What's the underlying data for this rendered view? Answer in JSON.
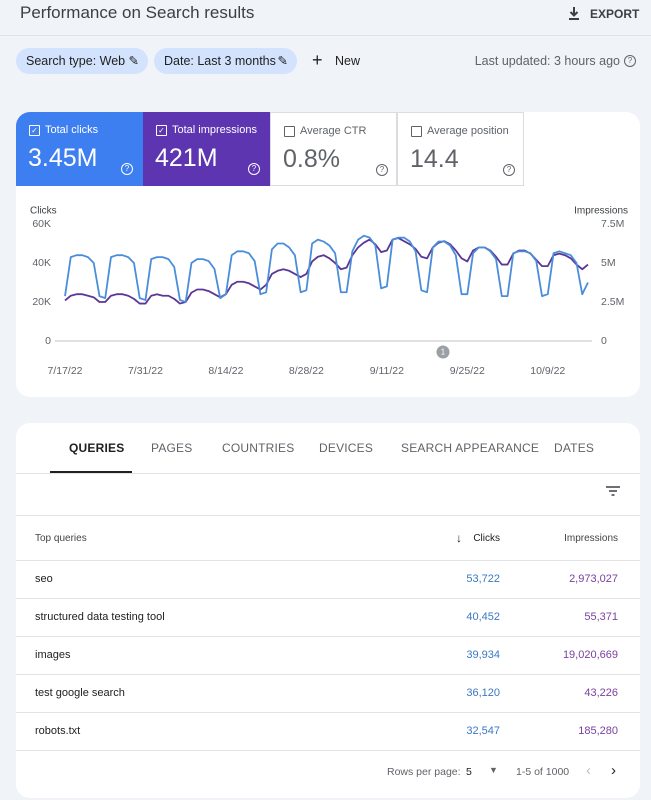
{
  "header": {
    "title": "Performance on Search results",
    "export": "EXPORT"
  },
  "filters": [
    "Search type: Web",
    "Date: Last 3 months"
  ],
  "new_button": "New",
  "last_updated": "Last updated: 3 hours ago",
  "metrics": [
    {
      "label": "Total clicks",
      "value": "3.45M"
    },
    {
      "label": "Total impressions",
      "value": "421M"
    },
    {
      "label": "Average CTR",
      "value": "0.8%"
    },
    {
      "label": "Average position",
      "value": "14.4"
    }
  ],
  "chart_data": {
    "type": "line",
    "y_label": "Clicks",
    "y2_label": "Impressions",
    "categories": [
      "7/17/22",
      null,
      null,
      null,
      null,
      null,
      null,
      null,
      null,
      null,
      null,
      null,
      null,
      null,
      "7/31/22",
      null,
      null,
      null,
      null,
      null,
      null,
      null,
      null,
      null,
      null,
      null,
      null,
      null,
      "8/14/22",
      null,
      null,
      null,
      null,
      null,
      null,
      null,
      null,
      null,
      null,
      null,
      null,
      null,
      "8/28/22",
      null,
      null,
      null,
      null,
      null,
      null,
      null,
      null,
      null,
      null,
      null,
      null,
      null,
      "9/11/22",
      null,
      null,
      null,
      null,
      null,
      null,
      null,
      null,
      null,
      null,
      null,
      null,
      null,
      "9/25/22",
      null,
      null,
      null,
      null,
      null,
      null,
      null,
      null,
      null,
      null,
      null,
      null,
      null,
      "10/9/22",
      null,
      null,
      null,
      null,
      null,
      null,
      null
    ],
    "ylim": [
      0,
      60000
    ],
    "yticks": [
      0,
      {
        "value": 20000,
        "label": "20K"
      },
      {
        "value": 40000,
        "label": "40K"
      },
      {
        "value": 60000,
        "label": "60K"
      }
    ],
    "y2lim": [
      0,
      7500000
    ],
    "y2ticks": [
      0,
      {
        "value": 2500000,
        "label": "2.5M"
      },
      {
        "value": 5000000,
        "label": "5M"
      },
      {
        "value": 7500000,
        "label": "7.5M"
      }
    ],
    "grid": false,
    "annotation": "1",
    "series": [
      {
        "name": "Clicks",
        "color": "#4a8ddb",
        "values": [
          23000,
          43000,
          44000,
          44000,
          43000,
          40000,
          23000,
          22000,
          43000,
          44000,
          44000,
          43000,
          40000,
          22000,
          21000,
          42000,
          43000,
          43000,
          42000,
          38000,
          21000,
          20000,
          40000,
          42000,
          42000,
          41000,
          37000,
          22000,
          24000,
          44000,
          46000,
          46000,
          45000,
          41000,
          24000,
          25000,
          47000,
          50000,
          50000,
          48000,
          44000,
          25000,
          26000,
          50000,
          52000,
          51000,
          49000,
          45000,
          25000,
          25000,
          46000,
          52000,
          54000,
          53000,
          49000,
          27000,
          28000,
          52000,
          53000,
          53000,
          51000,
          46000,
          26000,
          25000,
          48000,
          51000,
          51000,
          49000,
          44000,
          24000,
          24000,
          45000,
          48000,
          48000,
          46000,
          42000,
          23000,
          23000,
          45000,
          46000,
          46000,
          45000,
          41000,
          23000,
          24000,
          45000,
          46000,
          45000,
          44000,
          40000,
          24000,
          30000
        ]
      },
      {
        "name": "Impressions",
        "color": "#5b3796",
        "axis": "y2",
        "values": [
          2600000,
          2900000,
          3000000,
          3000000,
          2900000,
          2800000,
          2500000,
          2500000,
          2900000,
          3000000,
          3000000,
          2900000,
          2700000,
          2400000,
          2400000,
          2900000,
          3000000,
          2900000,
          2900000,
          2700000,
          2400000,
          2500000,
          3100000,
          3300000,
          3300000,
          3200000,
          3000000,
          2800000,
          3000000,
          3600000,
          3800000,
          3800000,
          3700000,
          3500000,
          3300000,
          3600000,
          4300000,
          4500000,
          4600000,
          4500000,
          4300000,
          4100000,
          4300000,
          5100000,
          5400000,
          5500000,
          5300000,
          5000000,
          4600000,
          4700000,
          5500000,
          6000000,
          6300000,
          6500000,
          6200000,
          5700000,
          5800000,
          6500000,
          6600000,
          6400000,
          6200000,
          5900000,
          5400000,
          5300000,
          6000000,
          6300000,
          6400000,
          6200000,
          5800000,
          5300000,
          5100000,
          5800000,
          6000000,
          6000000,
          5800000,
          5400000,
          4900000,
          4900000,
          5600000,
          5800000,
          5800000,
          5600000,
          5200000,
          4800000,
          4800000,
          5500000,
          5600000,
          5500000,
          5300000,
          4900000,
          4600000,
          4900000
        ]
      }
    ]
  },
  "tabs": [
    "QUERIES",
    "PAGES",
    "COUNTRIES",
    "DEVICES",
    "SEARCH APPEARANCE",
    "DATES"
  ],
  "table": {
    "columns": [
      "Top queries",
      "Clicks",
      "Impressions"
    ],
    "rows": [
      [
        "seo",
        "53,722",
        "2,973,027"
      ],
      [
        "structured data testing tool",
        "40,452",
        "55,371"
      ],
      [
        "images",
        "39,934",
        "19,020,669"
      ],
      [
        "test google search",
        "36,120",
        "43,226"
      ],
      [
        "robots.txt",
        "32,547",
        "185,280"
      ]
    ]
  },
  "pagination": {
    "rows_label": "Rows per page:",
    "rows_value": "5",
    "range": "1-5 of 1000"
  }
}
